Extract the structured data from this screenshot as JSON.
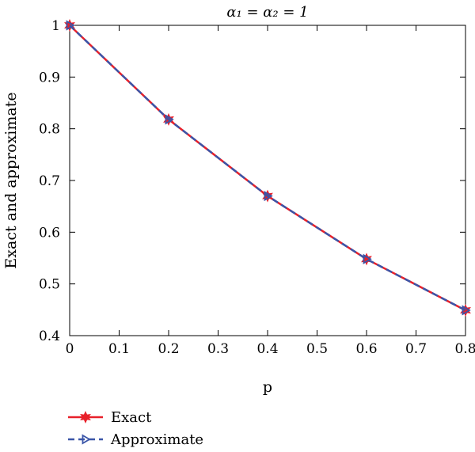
{
  "chart_data": {
    "type": "line",
    "title": "α₁ = α₂ = 1",
    "xlabel": "p",
    "ylabel": "Exact and approximate",
    "xlim": [
      0,
      0.8
    ],
    "ylim": [
      0.4,
      1.0
    ],
    "x_ticks": [
      "0",
      "0.1",
      "0.2",
      "0.3",
      "0.4",
      "0.5",
      "0.6",
      "0.7",
      "0.8"
    ],
    "y_ticks": [
      "0.4",
      "0.5",
      "0.6",
      "0.7",
      "0.8",
      "0.9",
      "1"
    ],
    "grid": false,
    "legend_placement": "bottom-left",
    "x": [
      0,
      0.2,
      0.4,
      0.6,
      0.8
    ],
    "series": [
      {
        "name": "Exact",
        "values": [
          1.0,
          0.818,
          0.67,
          0.548,
          0.449
        ],
        "color": "#e8202a",
        "marker": "star",
        "line": "solid"
      },
      {
        "name": "Approximate",
        "values": [
          1.0,
          0.818,
          0.67,
          0.548,
          0.449
        ],
        "color": "#3a55a8",
        "marker": "triangle-right",
        "line": "dashed"
      }
    ]
  }
}
